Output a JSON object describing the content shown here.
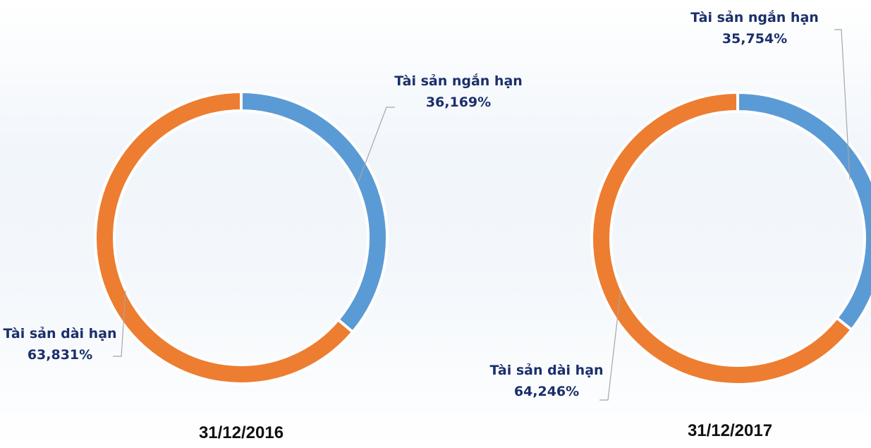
{
  "chart_data": [
    {
      "type": "donut",
      "title": "31/12/2016",
      "categories": [
        "Tài sản ngắn hạn",
        "Tài sản dài hạn"
      ],
      "values": [
        36.169,
        63.831
      ],
      "value_labels": [
        "36,169%",
        "63,831%"
      ],
      "colors": [
        "#5b9bd5",
        "#ed7d31"
      ]
    },
    {
      "type": "donut",
      "title": "31/12/2017",
      "categories": [
        "Tài sản ngắn hạn",
        "Tài sản dài hạn"
      ],
      "values": [
        35.754,
        64.246
      ],
      "value_labels": [
        "35,754%",
        "64,246%"
      ],
      "colors": [
        "#5b9bd5",
        "#ed7d31"
      ]
    }
  ]
}
